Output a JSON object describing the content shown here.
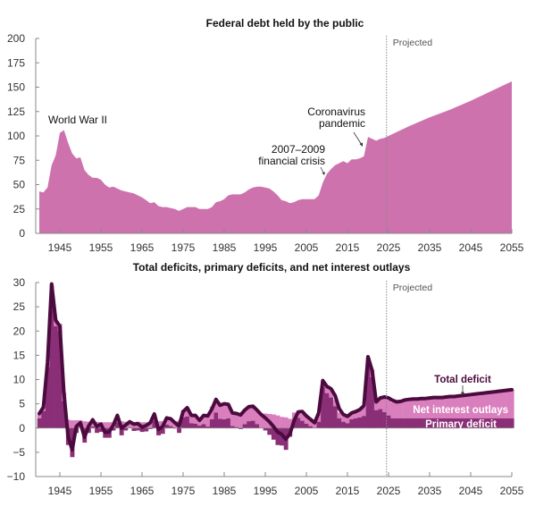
{
  "colors": {
    "debt_fill": "#cd72ad",
    "net_interest": "#d97fbd",
    "primary_deficit": "#8a2f77",
    "total_deficit_line": "#4c0b3e",
    "axis": "#888888",
    "projected_line": "#888888"
  },
  "chart_data": [
    {
      "type": "area",
      "title": "Federal debt held by the public",
      "xlabel": "",
      "ylabel": "",
      "xlim": [
        1940,
        2055
      ],
      "ylim": [
        0,
        200
      ],
      "x_ticks": [
        1945,
        1955,
        1965,
        1975,
        1985,
        1995,
        2005,
        2015,
        2025,
        2035,
        2045,
        2055
      ],
      "y_ticks": [
        0,
        25,
        50,
        75,
        100,
        125,
        150,
        175,
        200
      ],
      "projected_start": 2024.5,
      "projected_label": "Projected",
      "grid": false,
      "annotations": [
        {
          "text": "World War II",
          "x": 1946,
          "y": 106
        },
        {
          "text": [
            "2007–2009",
            "financial crisis"
          ],
          "x": 2009,
          "y": 60
        },
        {
          "text": [
            "Coronavirus",
            "pandemic"
          ],
          "x": 2019,
          "y": 79
        }
      ],
      "series": [
        {
          "name": "Federal debt held by the public",
          "x": [
            1940,
            1941,
            1942,
            1943,
            1944,
            1945,
            1946,
            1947,
            1948,
            1949,
            1950,
            1951,
            1952,
            1953,
            1954,
            1955,
            1956,
            1957,
            1958,
            1959,
            1960,
            1961,
            1962,
            1963,
            1964,
            1965,
            1966,
            1967,
            1968,
            1969,
            1970,
            1971,
            1972,
            1973,
            1974,
            1975,
            1976,
            1977,
            1978,
            1979,
            1980,
            1981,
            1982,
            1983,
            1984,
            1985,
            1986,
            1987,
            1988,
            1989,
            1990,
            1991,
            1992,
            1993,
            1994,
            1995,
            1996,
            1997,
            1998,
            1999,
            2000,
            2001,
            2002,
            2003,
            2004,
            2005,
            2006,
            2007,
            2008,
            2009,
            2010,
            2011,
            2012,
            2013,
            2014,
            2015,
            2016,
            2017,
            2018,
            2019,
            2020,
            2021,
            2022,
            2023,
            2024,
            2025,
            2030,
            2035,
            2040,
            2045,
            2050,
            2055
          ],
          "values": [
            43,
            42,
            47,
            70,
            80,
            103,
            106,
            93,
            82,
            77,
            78,
            65,
            60,
            57,
            57,
            55,
            50,
            47,
            48,
            46,
            44,
            43,
            42,
            41,
            39,
            37,
            34,
            31,
            32,
            28,
            27,
            27,
            26,
            25,
            23,
            25,
            27,
            27,
            27,
            25,
            25,
            25,
            27,
            32,
            33,
            35,
            39,
            40,
            40,
            40,
            42,
            45,
            47,
            48,
            48,
            47,
            46,
            43,
            39,
            34,
            33,
            31,
            32,
            34,
            35,
            35,
            35,
            35,
            39,
            52,
            61,
            66,
            70,
            72,
            74,
            72,
            76,
            76,
            77,
            79,
            99,
            97,
            95,
            97,
            98,
            100,
            110,
            119,
            127,
            136,
            146,
            156
          ]
        }
      ]
    },
    {
      "type": "bar",
      "title": "Total deficits, primary deficits, and net interest outlays",
      "xlabel": "",
      "ylabel": "",
      "xlim": [
        1940,
        2055
      ],
      "ylim": [
        -10,
        30
      ],
      "x_ticks": [
        1945,
        1955,
        1965,
        1975,
        1985,
        1995,
        2005,
        2015,
        2025,
        2035,
        2045,
        2055
      ],
      "y_ticks": [
        -10,
        -5,
        0,
        5,
        10,
        15,
        20,
        25,
        30
      ],
      "projected_start": 2024.5,
      "projected_label": "Projected",
      "grid": false,
      "stacked": true,
      "legend": [
        {
          "name": "Total deficit",
          "placement": "above-line-right"
        },
        {
          "name": "Net interest outlays",
          "placement": "inside-right"
        },
        {
          "name": "Primary deficit",
          "placement": "inside-right"
        }
      ],
      "x": [
        1940,
        1941,
        1942,
        1943,
        1944,
        1945,
        1946,
        1947,
        1948,
        1949,
        1950,
        1951,
        1952,
        1953,
        1954,
        1955,
        1956,
        1957,
        1958,
        1959,
        1960,
        1961,
        1962,
        1963,
        1964,
        1965,
        1966,
        1967,
        1968,
        1969,
        1970,
        1971,
        1972,
        1973,
        1974,
        1975,
        1976,
        1977,
        1978,
        1979,
        1980,
        1981,
        1982,
        1983,
        1984,
        1985,
        1986,
        1987,
        1988,
        1989,
        1990,
        1991,
        1992,
        1993,
        1994,
        1995,
        1996,
        1997,
        1998,
        1999,
        2000,
        2001,
        2002,
        2003,
        2004,
        2005,
        2006,
        2007,
        2008,
        2009,
        2010,
        2011,
        2012,
        2013,
        2014,
        2015,
        2016,
        2017,
        2018,
        2019,
        2020,
        2021,
        2022,
        2023,
        2024,
        2025,
        2026,
        2027,
        2028,
        2029,
        2030,
        2031,
        2032,
        2033,
        2034,
        2035,
        2036,
        2037,
        2038,
        2039,
        2040,
        2041,
        2042,
        2043,
        2044,
        2045,
        2046,
        2047,
        2048,
        2049,
        2050,
        2051,
        2052,
        2053,
        2054,
        2055
      ],
      "series": [
        {
          "name": "Primary deficit",
          "values": [
            2,
            3.5,
            12.5,
            28.5,
            21,
            20,
            5.5,
            -3.5,
            -6,
            -1,
            0,
            -3,
            -1,
            0.3,
            -1,
            -0.8,
            -2,
            -2,
            -0.5,
            1.2,
            -1.5,
            -0.5,
            0,
            -0.6,
            -0.5,
            -0.8,
            -0.7,
            -0.2,
            1.5,
            -1.5,
            -1.2,
            0.7,
            0.4,
            -0.1,
            -1,
            2.2,
            2.4,
            1,
            0.9,
            0.5,
            0.8,
            0.3,
            1.8,
            3.2,
            1.9,
            1.8,
            2.0,
            0.4,
            0.2,
            -0.2,
            0.8,
            1.4,
            1.5,
            0.8,
            0,
            -0.5,
            -1.4,
            -2.4,
            -3.5,
            -3.6,
            -4.5,
            -1.8,
            1.6,
            2.1,
            1.5,
            0.9,
            0.4,
            0,
            1.3,
            8.5,
            7.2,
            6.3,
            4.5,
            2.0,
            1.3,
            1.0,
            1.8,
            2.0,
            2.2,
            2.5,
            13,
            10.5,
            3.7,
            3.9,
            3.3,
            2.6,
            2.0,
            2.0,
            2.0,
            2.0,
            2.0,
            2.0,
            2.0,
            2.0,
            2.0,
            2.0,
            2.0,
            2.0,
            2.0,
            2.0,
            2.0,
            2.0,
            2.0,
            2.0,
            2.0,
            2.0,
            2.0,
            2.0,
            2.0,
            2.0,
            2.0,
            2.0,
            2.0,
            2.0,
            2.0,
            2.0
          ]
        },
        {
          "name": "Net interest outlays",
          "values": [
            0.9,
            0.9,
            0.8,
            1,
            1.3,
            1.5,
            1.8,
            1.7,
            1.6,
            1.6,
            1.6,
            1.4,
            1.3,
            1.3,
            1.3,
            1.2,
            1.2,
            1.2,
            1.2,
            1.2,
            1.4,
            1.3,
            1.2,
            1.2,
            1.3,
            1.2,
            1.2,
            1.2,
            1.2,
            1.4,
            1.4,
            1.4,
            1.3,
            1.4,
            1.5,
            1.5,
            1.5,
            1.5,
            1.6,
            1.7,
            1.9,
            2.2,
            2.6,
            2.5,
            2.8,
            3.0,
            2.9,
            2.8,
            2.9,
            3.0,
            3.1,
            3.1,
            3.0,
            2.8,
            2.8,
            3.0,
            2.9,
            2.8,
            2.6,
            2.3,
            2.2,
            1.9,
            1.6,
            1.4,
            1.4,
            1.5,
            1.6,
            1.7,
            1.6,
            1.3,
            1.5,
            1.5,
            1.3,
            1.2,
            1.2,
            1.3,
            1.3,
            1.4,
            1.6,
            1.8,
            1.6,
            1.5,
            1.9,
            2.4,
            3.1,
            3.2,
            3.3,
            3.5,
            3.7,
            3.8,
            3.9,
            4.0,
            4.0,
            4.1,
            4.1,
            4.2,
            4.3,
            4.3,
            4.4,
            4.4,
            4.5,
            4.6,
            4.6,
            4.7,
            4.8,
            4.9,
            5.0,
            5.1,
            5.2,
            5.3,
            5.4,
            5.5,
            5.6,
            5.7,
            5.8,
            5.9
          ]
        },
        {
          "name": "Total deficit",
          "values": [
            3,
            4.3,
            13.5,
            29.7,
            22.2,
            21,
            7.1,
            -1.7,
            -4.5,
            0.3,
            1.1,
            -1.9,
            0.4,
            1.7,
            0.3,
            0.8,
            -0.9,
            -0.8,
            0.6,
            2.6,
            0,
            0.6,
            1.3,
            0.8,
            0.9,
            0.2,
            0.5,
            1.1,
            2.9,
            -0.3,
            0.3,
            2.1,
            1.9,
            1.1,
            0.4,
            3.4,
            4.2,
            2.6,
            2.6,
            1.6,
            2.6,
            2.5,
            3.9,
            5.9,
            4.7,
            5.0,
            4.9,
            3.1,
            3.0,
            2.7,
            3.7,
            4.4,
            4.5,
            3.7,
            2.8,
            2.1,
            1.3,
            0.3,
            -0.8,
            -1.3,
            -2.3,
            -1.2,
            1.5,
            3.3,
            3.4,
            2.5,
            1.8,
            1.1,
            3.1,
            9.8,
            8.6,
            8.1,
            6.7,
            4.0,
            2.8,
            2.4,
            3.1,
            3.4,
            3.8,
            4.6,
            14.7,
            11.9,
            5.4,
            6.2,
            6.4,
            6.2,
            5.7,
            5.4,
            5.5,
            5.8,
            5.9,
            6.0,
            6.0,
            6.1,
            6.1,
            6.2,
            6.3,
            6.3,
            6.3,
            6.4,
            6.5,
            6.5,
            6.6,
            6.7,
            6.8,
            6.9,
            7.0,
            7.1,
            7.2,
            7.3,
            7.4,
            7.5,
            7.6,
            7.7,
            7.8,
            7.9
          ]
        }
      ]
    }
  ]
}
